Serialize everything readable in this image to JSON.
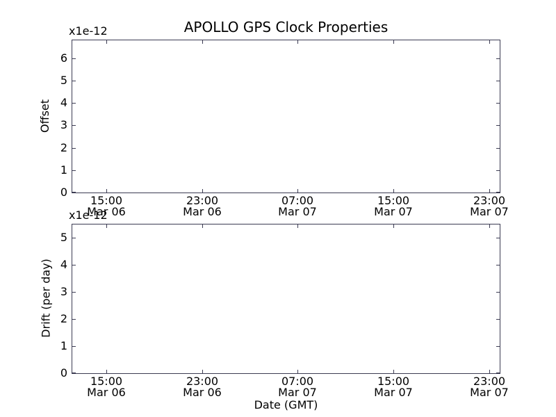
{
  "chart_data": [
    {
      "type": "line",
      "title": "APOLLO GPS Clock Properties",
      "ylabel": "Offset",
      "y_scale_label": "x1e-12",
      "ylim": [
        0,
        6.8
      ],
      "yticks": [
        0,
        1,
        2,
        3,
        4,
        5,
        6
      ],
      "xticks": [
        {
          "time": "15:00",
          "date": "Mar 06",
          "frac": 0.0802
        },
        {
          "time": "23:00",
          "date": "Mar 06",
          "frac": 0.3039
        },
        {
          "time": "07:00",
          "date": "Mar 07",
          "frac": 0.5276
        },
        {
          "time": "15:00",
          "date": "Mar 07",
          "frac": 0.7512
        },
        {
          "time": "23:00",
          "date": "Mar 07",
          "frac": 0.9749
        }
      ],
      "grid": false,
      "series": []
    },
    {
      "type": "line",
      "ylabel": "Drift (per day)",
      "xlabel": "Date (GMT)",
      "y_scale_label": "x1e-12",
      "ylim": [
        0,
        5.5
      ],
      "yticks": [
        0,
        1,
        2,
        3,
        4,
        5
      ],
      "xticks": [
        {
          "time": "15:00",
          "date": "Mar 06",
          "frac": 0.0802
        },
        {
          "time": "23:00",
          "date": "Mar 06",
          "frac": 0.3039
        },
        {
          "time": "07:00",
          "date": "Mar 07",
          "frac": 0.5276
        },
        {
          "time": "15:00",
          "date": "Mar 07",
          "frac": 0.7512
        },
        {
          "time": "23:00",
          "date": "Mar 07",
          "frac": 0.9749
        }
      ],
      "grid": false,
      "series": []
    }
  ],
  "colors": {
    "background": "#ffffff",
    "spine": "#3b3b52",
    "text": "#000000"
  }
}
